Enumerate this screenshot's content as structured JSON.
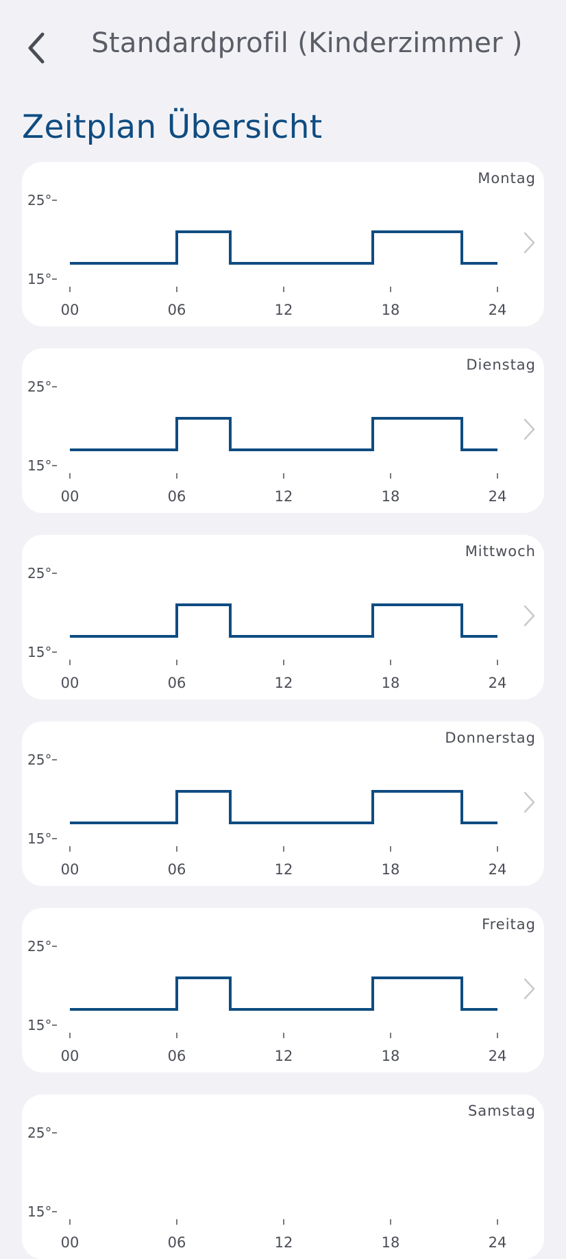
{
  "header": {
    "title": "Standardprofil (Kinderzimmer )"
  },
  "section": {
    "title": "Zeitplan Übersicht"
  },
  "colors": {
    "accent": "#0f4c81",
    "chevron": "#c8c9ce",
    "text": "#4a4d55"
  },
  "chart_data": {
    "type": "line",
    "x_ticks": [
      "00",
      "06",
      "12",
      "18",
      "24"
    ],
    "xlim": [
      0,
      24
    ],
    "y_ticks": [
      "25°",
      "15°"
    ],
    "ylim": [
      15,
      25
    ],
    "days": [
      {
        "day": "Montag",
        "schedule": [
          [
            0,
            17
          ],
          [
            6,
            17
          ],
          [
            6,
            21
          ],
          [
            9,
            21
          ],
          [
            9,
            17
          ],
          [
            17,
            17
          ],
          [
            17,
            21
          ],
          [
            22,
            21
          ],
          [
            22,
            17
          ],
          [
            24,
            17
          ]
        ]
      },
      {
        "day": "Dienstag",
        "schedule": [
          [
            0,
            17
          ],
          [
            6,
            17
          ],
          [
            6,
            21
          ],
          [
            9,
            21
          ],
          [
            9,
            17
          ],
          [
            17,
            17
          ],
          [
            17,
            21
          ],
          [
            22,
            21
          ],
          [
            22,
            17
          ],
          [
            24,
            17
          ]
        ]
      },
      {
        "day": "Mittwoch",
        "schedule": [
          [
            0,
            17
          ],
          [
            6,
            17
          ],
          [
            6,
            21
          ],
          [
            9,
            21
          ],
          [
            9,
            17
          ],
          [
            17,
            17
          ],
          [
            17,
            21
          ],
          [
            22,
            21
          ],
          [
            22,
            17
          ],
          [
            24,
            17
          ]
        ]
      },
      {
        "day": "Donnerstag",
        "schedule": [
          [
            0,
            17
          ],
          [
            6,
            17
          ],
          [
            6,
            21
          ],
          [
            9,
            21
          ],
          [
            9,
            17
          ],
          [
            17,
            17
          ],
          [
            17,
            21
          ],
          [
            22,
            21
          ],
          [
            22,
            17
          ],
          [
            24,
            17
          ]
        ]
      },
      {
        "day": "Freitag",
        "schedule": [
          [
            0,
            17
          ],
          [
            6,
            17
          ],
          [
            6,
            21
          ],
          [
            9,
            21
          ],
          [
            9,
            17
          ],
          [
            17,
            17
          ],
          [
            17,
            21
          ],
          [
            22,
            21
          ],
          [
            22,
            17
          ],
          [
            24,
            17
          ]
        ]
      },
      {
        "day": "Samstag",
        "schedule": []
      }
    ]
  }
}
